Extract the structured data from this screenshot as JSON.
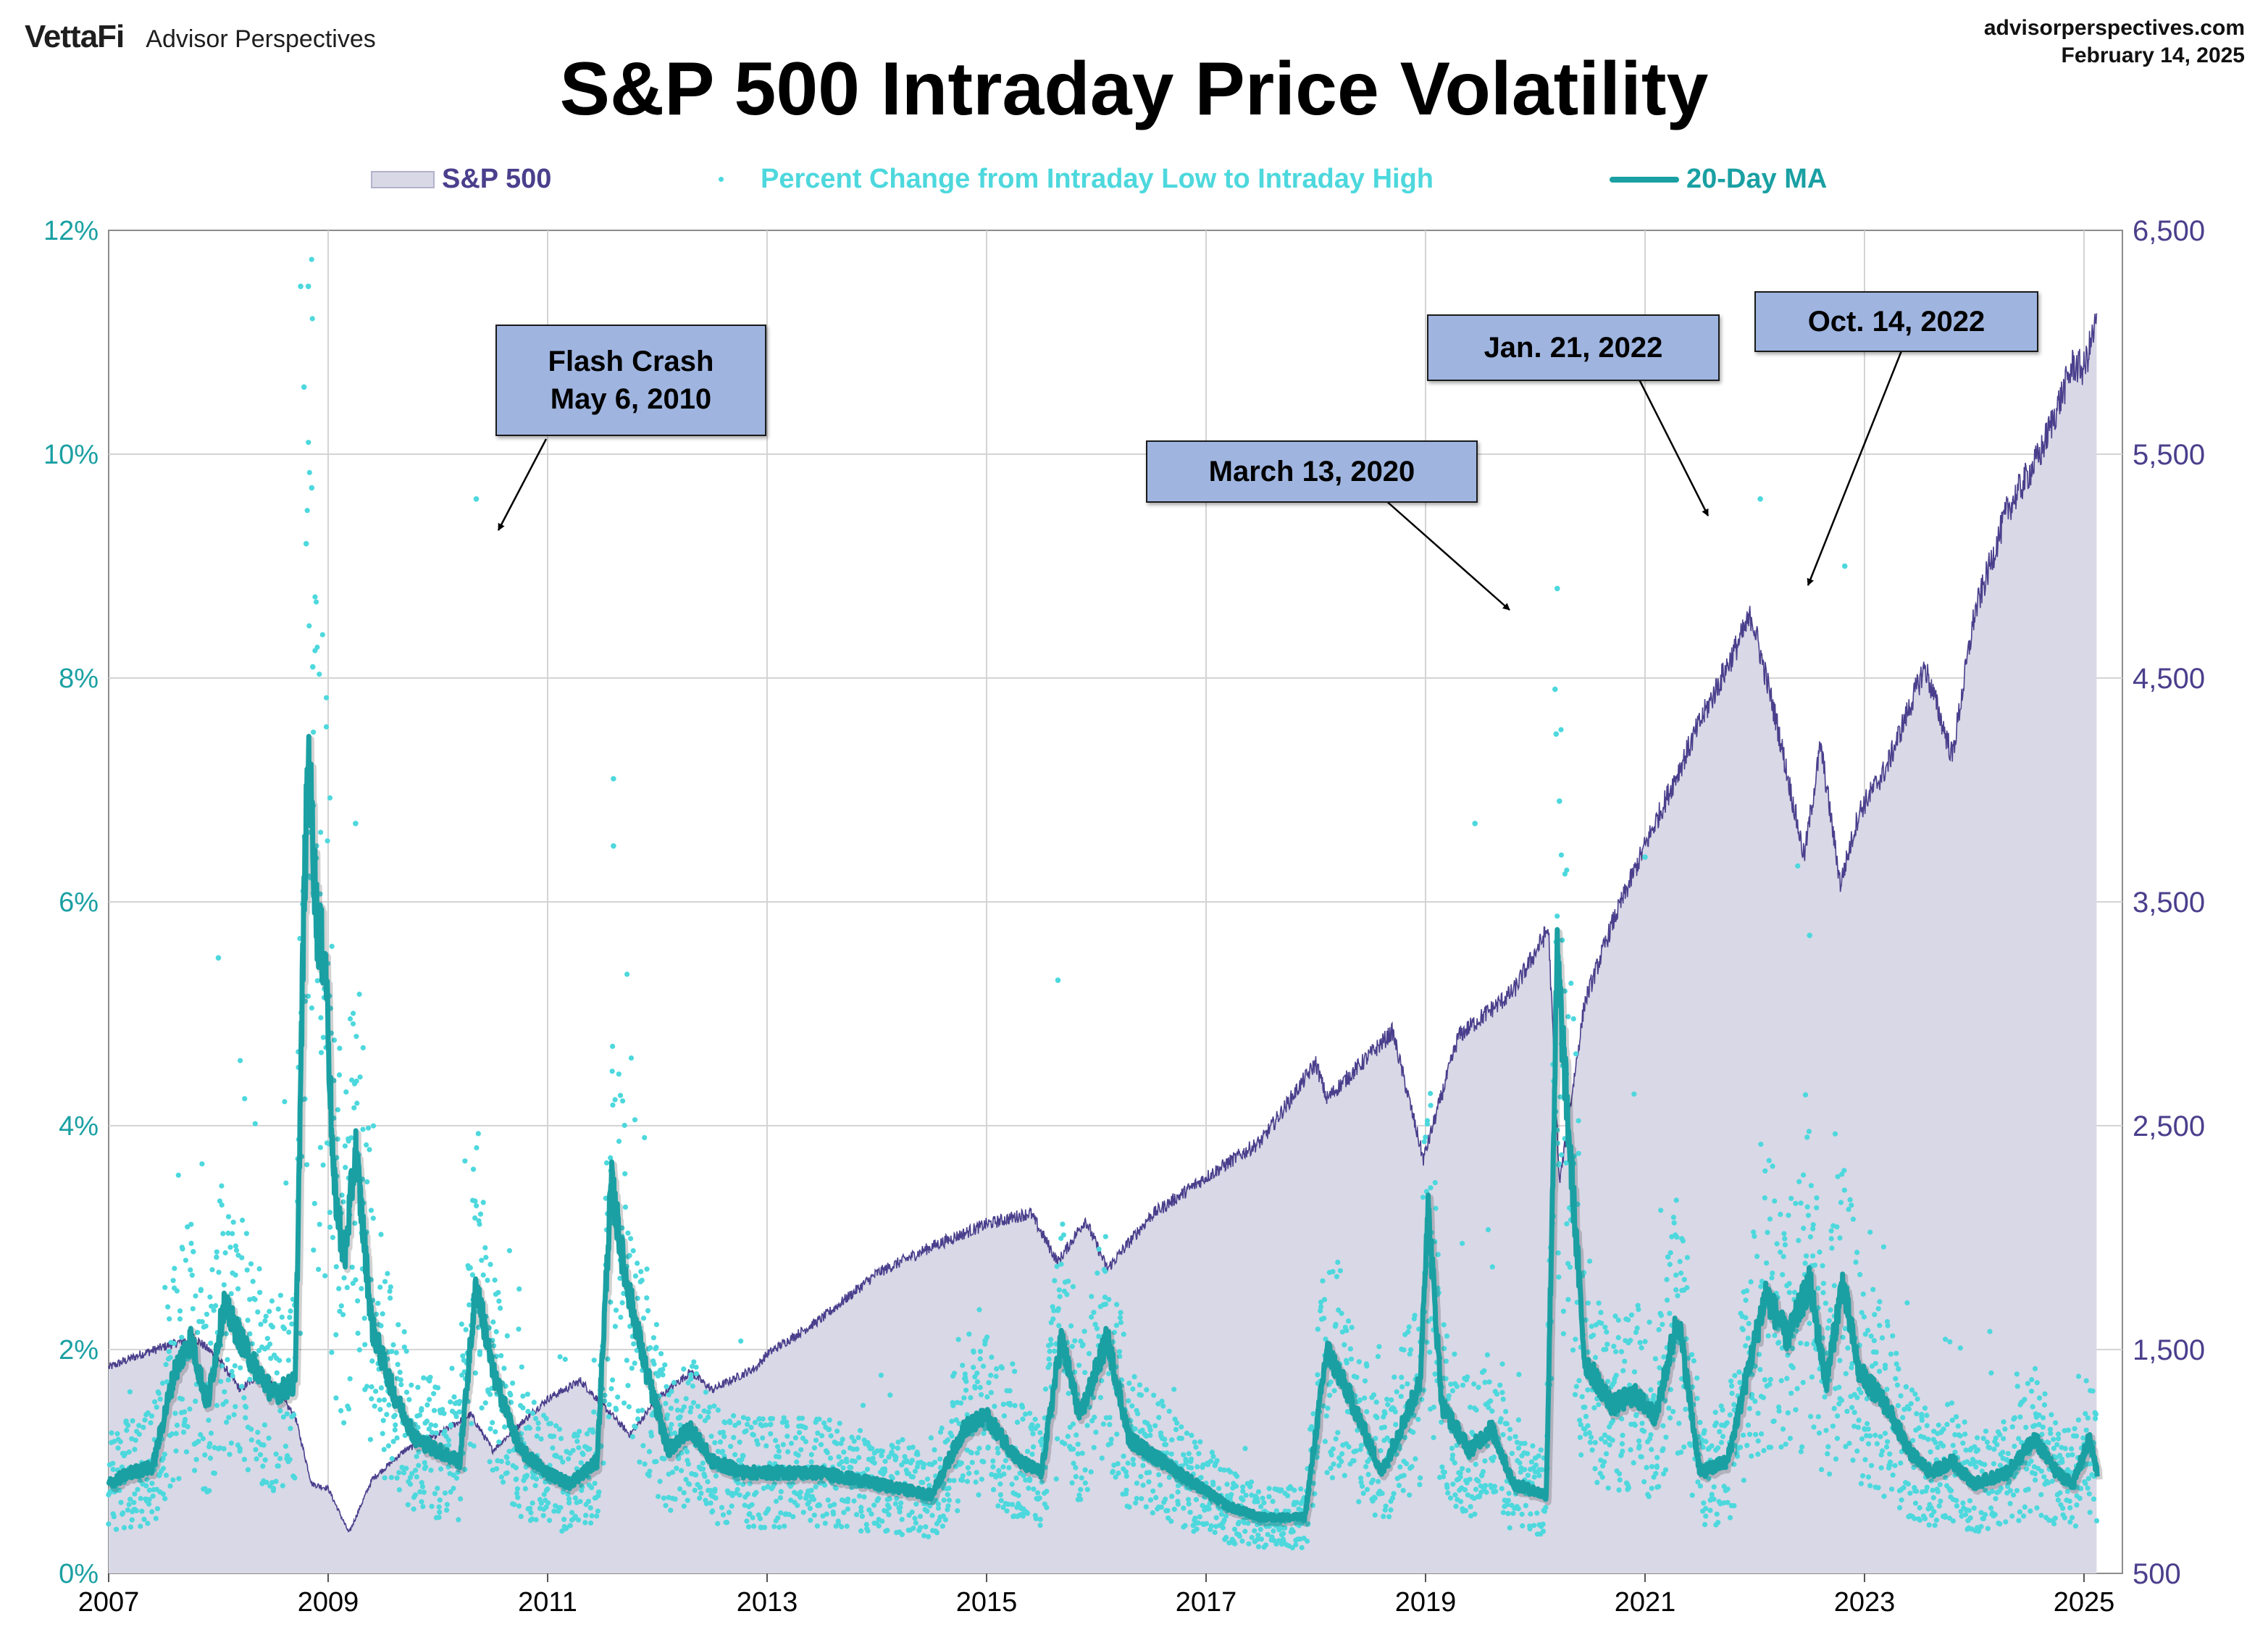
{
  "header": {
    "brand_logo": "VettaFi",
    "brand_name": "Advisor Perspectives",
    "site": "advisorperspectives.com",
    "date": "February 14, 2025",
    "title": "S&P 500 Intraday Price Volatility"
  },
  "colors": {
    "area_fill": "#d9d8e6",
    "area_line": "#4a3f8c",
    "scatter": "#4dd8dd",
    "ma_line": "#1aa0a3",
    "left_axis": "#1aa0a3",
    "right_axis": "#4a3f8c",
    "annotation_fill": "#9fb5e0"
  },
  "chart_data": {
    "type": "area+scatter+line",
    "title": "S&P 500 Intraday Price Volatility",
    "x_range": [
      2007,
      2025.35
    ],
    "x_ticks": [
      "2007",
      "2009",
      "2011",
      "2013",
      "2015",
      "2017",
      "2019",
      "2021",
      "2023",
      "2025"
    ],
    "y_left": {
      "range": [
        0,
        12
      ],
      "ticks": [
        "0%",
        "2%",
        "4%",
        "6%",
        "8%",
        "10%",
        "12%"
      ]
    },
    "y_right": {
      "range": [
        500,
        6500
      ],
      "ticks": [
        "500",
        "1,500",
        "2,500",
        "3,500",
        "4,500",
        "5,500",
        "6,500"
      ]
    },
    "grid": true,
    "legend_placement": "top-center",
    "series": [
      {
        "name": "S&P 500",
        "kind": "area",
        "axis": "right",
        "points": [
          [
            2007.0,
            1420
          ],
          [
            2007.3,
            1480
          ],
          [
            2007.78,
            1555
          ],
          [
            2008.0,
            1460
          ],
          [
            2008.2,
            1320
          ],
          [
            2008.4,
            1400
          ],
          [
            2008.7,
            1200
          ],
          [
            2008.85,
            900
          ],
          [
            2009.0,
            880
          ],
          [
            2009.19,
            680
          ],
          [
            2009.4,
            920
          ],
          [
            2009.7,
            1050
          ],
          [
            2010.0,
            1120
          ],
          [
            2010.3,
            1210
          ],
          [
            2010.5,
            1050
          ],
          [
            2010.8,
            1190
          ],
          [
            2011.0,
            1280
          ],
          [
            2011.3,
            1360
          ],
          [
            2011.6,
            1200
          ],
          [
            2011.75,
            1120
          ],
          [
            2012.0,
            1280
          ],
          [
            2012.3,
            1400
          ],
          [
            2012.5,
            1320
          ],
          [
            2012.9,
            1420
          ],
          [
            2013.0,
            1480
          ],
          [
            2013.5,
            1640
          ],
          [
            2014.0,
            1840
          ],
          [
            2014.5,
            1960
          ],
          [
            2015.0,
            2060
          ],
          [
            2015.4,
            2110
          ],
          [
            2015.65,
            1890
          ],
          [
            2015.9,
            2080
          ],
          [
            2016.1,
            1860
          ],
          [
            2016.5,
            2100
          ],
          [
            2017.0,
            2270
          ],
          [
            2017.5,
            2430
          ],
          [
            2018.0,
            2780
          ],
          [
            2018.1,
            2620
          ],
          [
            2018.7,
            2920
          ],
          [
            2018.98,
            2350
          ],
          [
            2019.3,
            2900
          ],
          [
            2019.8,
            3100
          ],
          [
            2020.12,
            3380
          ],
          [
            2020.22,
            2240
          ],
          [
            2020.45,
            3050
          ],
          [
            2020.7,
            3400
          ],
          [
            2021.0,
            3750
          ],
          [
            2021.5,
            4300
          ],
          [
            2021.97,
            4780
          ],
          [
            2022.2,
            4300
          ],
          [
            2022.45,
            3700
          ],
          [
            2022.6,
            4200
          ],
          [
            2022.78,
            3580
          ],
          [
            2022.95,
            3900
          ],
          [
            2023.2,
            4100
          ],
          [
            2023.55,
            4550
          ],
          [
            2023.8,
            4150
          ],
          [
            2024.0,
            4780
          ],
          [
            2024.3,
            5250
          ],
          [
            2024.6,
            5500
          ],
          [
            2024.9,
            5900
          ],
          [
            2025.0,
            5880
          ],
          [
            2025.12,
            6100
          ]
        ]
      },
      {
        "name": "Percent Change from Intraday Low to Intraday High",
        "kind": "scatter",
        "axis": "left",
        "outliers": [
          [
            2008.75,
            11.5
          ],
          [
            2008.82,
            11.5
          ],
          [
            2008.78,
            10.6
          ],
          [
            2008.85,
            9.7
          ],
          [
            2008.8,
            9.2
          ],
          [
            2008.86,
            8.1
          ],
          [
            2010.35,
            9.6
          ],
          [
            2011.6,
            7.1
          ],
          [
            2011.6,
            6.5
          ],
          [
            2020.2,
            8.8
          ],
          [
            2020.18,
            7.9
          ],
          [
            2020.19,
            7.5
          ],
          [
            2020.22,
            6.9
          ],
          [
            2019.45,
            6.7
          ],
          [
            2022.05,
            9.6
          ],
          [
            2022.82,
            9.0
          ],
          [
            2008.0,
            5.5
          ],
          [
            2009.25,
            6.7
          ],
          [
            2015.65,
            5.3
          ],
          [
            2021.0,
            6.4
          ],
          [
            2022.5,
            5.7
          ]
        ]
      },
      {
        "name": "20-Day MA",
        "kind": "line",
        "axis": "left",
        "points": [
          [
            2007.0,
            0.8
          ],
          [
            2007.2,
            0.9
          ],
          [
            2007.4,
            0.95
          ],
          [
            2007.6,
            1.8
          ],
          [
            2007.75,
            2.1
          ],
          [
            2007.9,
            1.5
          ],
          [
            2008.05,
            2.4
          ],
          [
            2008.2,
            2.1
          ],
          [
            2008.3,
            1.9
          ],
          [
            2008.5,
            1.6
          ],
          [
            2008.7,
            1.7
          ],
          [
            2008.78,
            6.0
          ],
          [
            2008.82,
            7.3
          ],
          [
            2008.9,
            5.8
          ],
          [
            2008.98,
            5.4
          ],
          [
            2009.05,
            3.5
          ],
          [
            2009.15,
            2.8
          ],
          [
            2009.25,
            3.8
          ],
          [
            2009.4,
            2.2
          ],
          [
            2009.6,
            1.6
          ],
          [
            2009.8,
            1.2
          ],
          [
            2010.0,
            1.1
          ],
          [
            2010.2,
            1.0
          ],
          [
            2010.35,
            2.6
          ],
          [
            2010.5,
            1.8
          ],
          [
            2010.75,
            1.1
          ],
          [
            2011.0,
            0.9
          ],
          [
            2011.2,
            0.8
          ],
          [
            2011.45,
            1.0
          ],
          [
            2011.58,
            3.5
          ],
          [
            2011.7,
            2.7
          ],
          [
            2011.9,
            1.8
          ],
          [
            2012.1,
            1.1
          ],
          [
            2012.3,
            1.3
          ],
          [
            2012.5,
            1.0
          ],
          [
            2012.8,
            0.9
          ],
          [
            2013.0,
            0.9
          ],
          [
            2013.5,
            0.9
          ],
          [
            2014.0,
            0.8
          ],
          [
            2014.5,
            0.7
          ],
          [
            2014.8,
            1.3
          ],
          [
            2015.0,
            1.4
          ],
          [
            2015.3,
            1.0
          ],
          [
            2015.5,
            0.9
          ],
          [
            2015.68,
            2.1
          ],
          [
            2015.85,
            1.4
          ],
          [
            2016.1,
            2.1
          ],
          [
            2016.3,
            1.2
          ],
          [
            2016.6,
            1.0
          ],
          [
            2016.9,
            0.8
          ],
          [
            2017.2,
            0.6
          ],
          [
            2017.5,
            0.5
          ],
          [
            2017.9,
            0.5
          ],
          [
            2018.1,
            2.0
          ],
          [
            2018.3,
            1.6
          ],
          [
            2018.6,
            0.9
          ],
          [
            2018.95,
            1.7
          ],
          [
            2019.02,
            3.3
          ],
          [
            2019.15,
            1.5
          ],
          [
            2019.4,
            1.1
          ],
          [
            2019.6,
            1.3
          ],
          [
            2019.8,
            0.8
          ],
          [
            2020.1,
            0.7
          ],
          [
            2020.2,
            5.5
          ],
          [
            2020.3,
            4.0
          ],
          [
            2020.45,
            1.9
          ],
          [
            2020.7,
            1.5
          ],
          [
            2020.9,
            1.6
          ],
          [
            2021.1,
            1.4
          ],
          [
            2021.3,
            2.3
          ],
          [
            2021.5,
            0.9
          ],
          [
            2021.75,
            1.0
          ],
          [
            2022.1,
            2.5
          ],
          [
            2022.3,
            2.1
          ],
          [
            2022.5,
            2.6
          ],
          [
            2022.65,
            1.7
          ],
          [
            2022.8,
            2.6
          ],
          [
            2022.95,
            1.8
          ],
          [
            2023.2,
            1.5
          ],
          [
            2023.4,
            1.1
          ],
          [
            2023.6,
            0.9
          ],
          [
            2023.8,
            1.0
          ],
          [
            2024.0,
            0.8
          ],
          [
            2024.3,
            0.9
          ],
          [
            2024.55,
            1.2
          ],
          [
            2024.75,
            0.9
          ],
          [
            2024.9,
            0.8
          ],
          [
            2025.05,
            1.2
          ],
          [
            2025.12,
            0.9
          ]
        ]
      }
    ],
    "annotations": [
      {
        "lines": [
          "Flash Crash",
          "May 6, 2010"
        ],
        "target": [
          2010.35,
          9.6
        ]
      },
      {
        "lines": [
          "March 13, 2020"
        ],
        "target": [
          2020.2,
          8.8
        ]
      },
      {
        "lines": [
          "Jan. 21, 2022"
        ],
        "target": [
          2022.05,
          9.6
        ]
      },
      {
        "lines": [
          "Oct. 14, 2022"
        ],
        "target": [
          2022.82,
          9.0
        ]
      }
    ]
  }
}
